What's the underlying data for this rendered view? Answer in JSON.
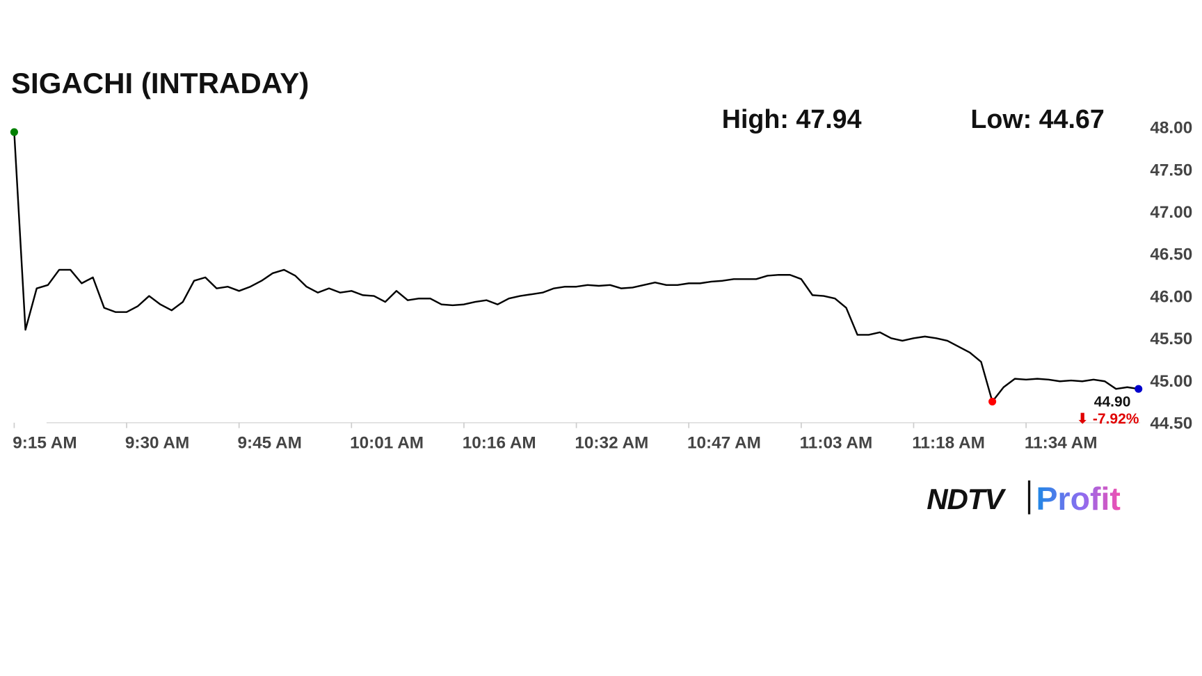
{
  "chart_data": {
    "type": "line",
    "title": "SIGACHI (INTRADAY)",
    "annotations": [
      "High: 47.94",
      "Low: 44.67"
    ],
    "last_label": "44.90",
    "change_label": "⬇ -7.92%",
    "brand": [
      "NDTV",
      "Profit"
    ],
    "categories": [
      "9:15 AM",
      null,
      null,
      null,
      null,
      null,
      null,
      null,
      null,
      null,
      "9:30 AM",
      null,
      null,
      null,
      null,
      null,
      null,
      null,
      null,
      null,
      "9:45 AM",
      null,
      null,
      null,
      null,
      null,
      null,
      null,
      null,
      null,
      "10:01 AM",
      null,
      null,
      null,
      null,
      null,
      null,
      null,
      null,
      null,
      "10:16 AM",
      null,
      null,
      null,
      null,
      null,
      null,
      null,
      null,
      null,
      "10:32 AM",
      null,
      null,
      null,
      null,
      null,
      null,
      null,
      null,
      null,
      "10:47 AM",
      null,
      null,
      null,
      null,
      null,
      null,
      null,
      null,
      null,
      "11:03 AM",
      null,
      null,
      null,
      null,
      null,
      null,
      null,
      null,
      null,
      "11:18 AM",
      null,
      null,
      null,
      null,
      null,
      null,
      null,
      null,
      null,
      "11:34 AM",
      null,
      null,
      null,
      null,
      null,
      null,
      null,
      null,
      null,
      null
    ],
    "series": [
      {
        "name": "SIGACHI",
        "color": "#000000",
        "values": [
          47.94,
          45.6,
          46.09,
          46.13,
          46.31,
          46.31,
          46.15,
          46.22,
          45.86,
          45.81,
          45.81,
          45.88,
          46.0,
          45.9,
          45.83,
          45.93,
          46.18,
          46.22,
          46.09,
          46.11,
          46.06,
          46.11,
          46.18,
          46.27,
          46.31,
          46.24,
          46.11,
          46.04,
          46.09,
          46.04,
          46.06,
          46.01,
          46.0,
          45.93,
          46.06,
          45.95,
          45.97,
          45.97,
          45.9,
          45.89,
          45.9,
          45.93,
          45.95,
          45.9,
          45.97,
          46.0,
          46.02,
          46.04,
          46.09,
          46.11,
          46.11,
          46.13,
          46.12,
          46.13,
          46.09,
          46.1,
          46.13,
          46.16,
          46.13,
          46.13,
          46.15,
          46.15,
          46.17,
          46.18,
          46.2,
          46.2,
          46.2,
          46.24,
          46.25,
          46.25,
          46.2,
          46.01,
          46.0,
          45.97,
          45.86,
          45.54,
          45.54,
          45.57,
          45.5,
          45.47,
          45.5,
          45.52,
          45.5,
          45.47,
          45.4,
          45.33,
          45.22,
          44.75,
          44.92,
          45.02,
          45.01,
          45.02,
          45.01,
          44.99,
          45.0,
          44.99,
          45.01,
          44.99,
          44.9,
          44.92,
          44.9
        ]
      }
    ],
    "marker_colors": {
      "start": "#008000",
      "low": "#ff0000",
      "end": "#0000cc"
    },
    "change_color": "#e00000",
    "ylim": [
      44.5,
      48.0
    ],
    "yticks": [
      {
        "value": 44.5,
        "label": "44.50"
      },
      {
        "value": 45.0,
        "label": "45.00"
      },
      {
        "value": 45.5,
        "label": "45.50"
      },
      {
        "value": 46.0,
        "label": "46.00"
      },
      {
        "value": 46.5,
        "label": "46.50"
      },
      {
        "value": 47.0,
        "label": "47.00"
      },
      {
        "value": 47.5,
        "label": "47.50"
      },
      {
        "value": 48.0,
        "label": "48.00"
      }
    ],
    "grid": false
  }
}
